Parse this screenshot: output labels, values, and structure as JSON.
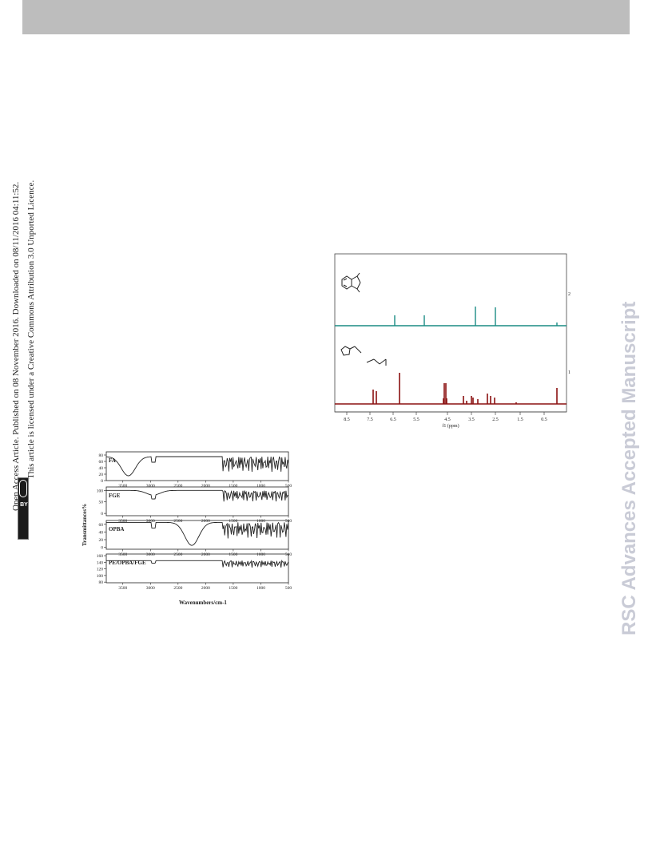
{
  "watermark": "RSC Advances Accepted Manuscript",
  "license": {
    "line1": "Open Access Article. Published on 08 November 2016. Downloaded on 08/11/2016 04:11:52.",
    "line2": "This article is licensed under a Creative Commons Attribution 3.0 Unported Licence.",
    "badge_cc": "cc",
    "badge_by": "BY"
  },
  "nmr": {
    "x_label": "f1 (ppm)",
    "x_ticks": [
      "8.5",
      "7.5",
      "6.5",
      "5.5",
      "4.5",
      "3.5",
      "2.5",
      "1.5",
      "0.5"
    ],
    "upper_spectrum_id": "2",
    "lower_spectrum_id": "1",
    "upper_color": "#1a8c84",
    "lower_color": "#8b1010"
  },
  "chart_data": {
    "type": "line",
    "title": "",
    "xlabel": "Wavenumbers/cm-1",
    "ylabel": "Transmittances%",
    "x_ticks": [
      3500,
      3000,
      2500,
      2000,
      1500,
      1000,
      500
    ],
    "xlim": [
      3800,
      500
    ],
    "panels": [
      {
        "name": "FA",
        "y_ticks": [
          0,
          20,
          40,
          60,
          80
        ],
        "ylim": [
          0,
          90
        ]
      },
      {
        "name": "FGE",
        "y_ticks": [
          0,
          50,
          100
        ],
        "ylim": [
          -10,
          115
        ]
      },
      {
        "name": "OPBA",
        "y_ticks": [
          0,
          20,
          40,
          60
        ],
        "ylim": [
          -5,
          70
        ]
      },
      {
        "name": "PE/OPBA/FGE",
        "y_ticks": [
          80,
          100,
          120,
          140,
          160
        ],
        "ylim": [
          78,
          165
        ]
      }
    ]
  }
}
